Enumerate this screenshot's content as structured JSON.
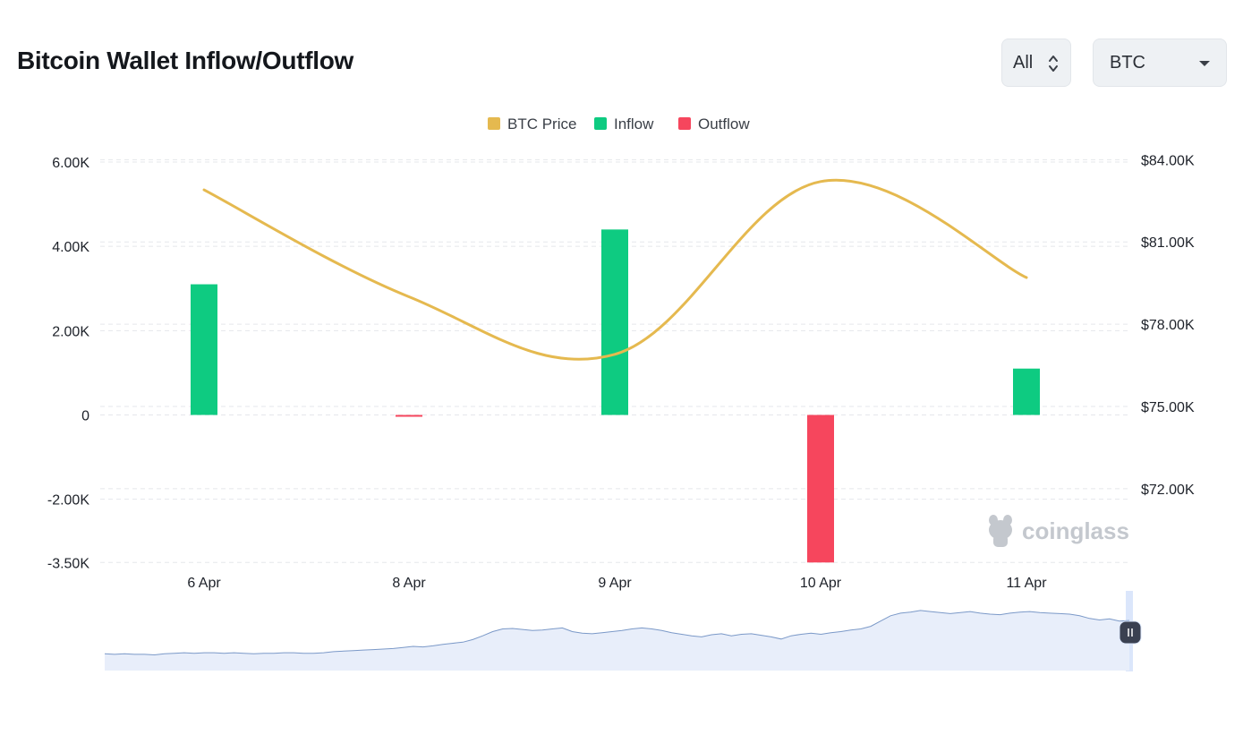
{
  "header": {
    "title": "Bitcoin Wallet Inflow/Outflow",
    "range_select": {
      "value": "All"
    },
    "coin_select": {
      "value": "BTC"
    }
  },
  "watermark": "coinglass",
  "colors": {
    "price": "#e5b94f",
    "inflow": "#0ecb81",
    "outflow": "#f6465d",
    "grid": "#e5e7eb",
    "navigator_fill": "#e8eefa",
    "navigator_line": "#7b99c8"
  },
  "chart_data": {
    "type": "bar",
    "title": "Bitcoin Wallet Inflow/Outflow",
    "categories": [
      "6 Apr",
      "8 Apr",
      "9 Apr",
      "10 Apr",
      "11 Apr"
    ],
    "series": [
      {
        "name": "Inflow",
        "type": "bar",
        "axis": "left",
        "values": [
          3100,
          0,
          4400,
          0,
          1100
        ]
      },
      {
        "name": "Outflow",
        "type": "bar",
        "axis": "left",
        "values": [
          0,
          -30,
          0,
          -3500,
          0
        ]
      },
      {
        "name": "BTC Price",
        "type": "line",
        "axis": "right",
        "values": [
          82900,
          79000,
          76900,
          83200,
          79700
        ]
      }
    ],
    "left_axis": {
      "ticks": [
        6000,
        4000,
        2000,
        0,
        -2000,
        -3500
      ],
      "tick_labels": [
        "6.00K",
        "4.00K",
        "2.00K",
        "0",
        "-2.00K",
        "-3.50K"
      ]
    },
    "right_axis": {
      "ticks": [
        84000,
        81000,
        78000,
        75000,
        72000
      ],
      "tick_labels": [
        "$84.00K",
        "$81.00K",
        "$78.00K",
        "$75.00K",
        "$72.00K"
      ]
    },
    "grid": true,
    "legend_position": "top-center",
    "legend": [
      "BTC Price",
      "Inflow",
      "Outflow"
    ],
    "navigator": {
      "description": "overview of BTC price history",
      "values": [
        0.08,
        0.07,
        0.08,
        0.07,
        0.07,
        0.06,
        0.08,
        0.09,
        0.1,
        0.09,
        0.1,
        0.1,
        0.09,
        0.1,
        0.09,
        0.08,
        0.09,
        0.09,
        0.1,
        0.1,
        0.09,
        0.09,
        0.1,
        0.12,
        0.13,
        0.14,
        0.15,
        0.16,
        0.17,
        0.18,
        0.2,
        0.22,
        0.21,
        0.23,
        0.26,
        0.28,
        0.3,
        0.35,
        0.42,
        0.5,
        0.55,
        0.56,
        0.54,
        0.52,
        0.53,
        0.55,
        0.57,
        0.5,
        0.47,
        0.46,
        0.48,
        0.5,
        0.52,
        0.55,
        0.57,
        0.55,
        0.52,
        0.48,
        0.45,
        0.42,
        0.4,
        0.44,
        0.46,
        0.42,
        0.45,
        0.46,
        0.43,
        0.4,
        0.36,
        0.42,
        0.45,
        0.47,
        0.45,
        0.48,
        0.5,
        0.53,
        0.55,
        0.6,
        0.7,
        0.8,
        0.85,
        0.87,
        0.9,
        0.88,
        0.86,
        0.84,
        0.86,
        0.88,
        0.85,
        0.83,
        0.82,
        0.85,
        0.87,
        0.88,
        0.86,
        0.85,
        0.84,
        0.83,
        0.8,
        0.75,
        0.72,
        0.74,
        0.7,
        0.71
      ]
    }
  }
}
